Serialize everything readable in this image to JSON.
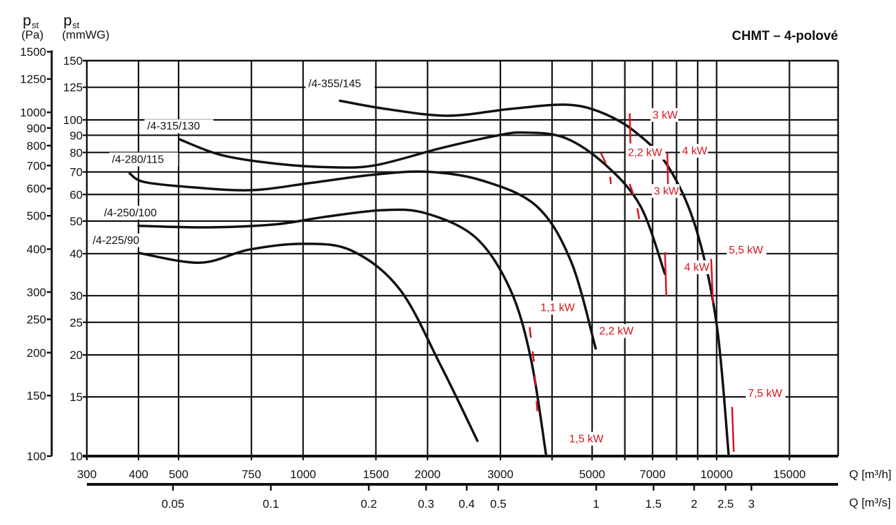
{
  "chart_data": {
    "type": "line",
    "title": "CHMT – 4-polové",
    "y_axis_pa": {
      "symbol": "p",
      "sub": "st",
      "unit": "(Pa)",
      "ticks": [
        1500,
        1250,
        1000,
        900,
        800,
        700,
        600,
        500,
        400,
        300,
        250,
        200,
        150,
        100
      ],
      "range": [
        100,
        1500
      ],
      "scale": "log"
    },
    "y_axis_mmwg": {
      "symbol": "p",
      "sub": "st",
      "unit": "(mmWG)",
      "ticks": [
        150,
        125,
        100,
        90,
        80,
        70,
        60,
        50,
        40,
        30,
        25,
        20,
        15,
        10
      ],
      "range": [
        10,
        150
      ],
      "scale": "log"
    },
    "x_axis_m3h": {
      "label": "Q [m³/h]",
      "ticks": [
        300,
        400,
        500,
        750,
        1000,
        1500,
        2000,
        3000,
        5000,
        7000,
        10000,
        15000
      ],
      "gridlines": [
        300,
        400,
        500,
        750,
        1000,
        1500,
        2000,
        3000,
        4000,
        5000,
        6000,
        7000,
        8000,
        9000,
        10000,
        15000
      ],
      "range": [
        300,
        19500
      ],
      "scale": "log"
    },
    "x_axis_m3s": {
      "label": "Q [m³/s]",
      "ticks": [
        "0.05",
        "0.1",
        "0.2",
        "0.3",
        "0.4",
        "0.5",
        "1",
        "1.5",
        "2",
        "2.5",
        "3"
      ],
      "scale": "log"
    },
    "grid": true,
    "series": [
      {
        "name": "/4-355/145",
        "label_at": [
          1030,
          125
        ],
        "points": [
          [
            1228,
            114
          ],
          [
            1585,
            107.8
          ],
          [
            2236,
            102.9
          ],
          [
            3170,
            107.8
          ],
          [
            4300,
            111
          ],
          [
            5200,
            105.8
          ],
          [
            6300,
            92.9
          ],
          [
            7600,
            73.3
          ],
          [
            8900,
            47.9
          ],
          [
            10000,
            24.7
          ],
          [
            10700,
            10
          ]
        ]
      },
      {
        "name": "/4-315/130",
        "label_at": [
          420,
          93.5
        ],
        "points": [
          [
            502,
            87.6
          ],
          [
            632,
            78.7
          ],
          [
            858,
            74.1
          ],
          [
            1170,
            72.3
          ],
          [
            1497,
            73.3
          ],
          [
            2152,
            82.4
          ],
          [
            2930,
            89.7
          ],
          [
            3420,
            91.7
          ],
          [
            4300,
            88.4
          ],
          [
            5400,
            73.3
          ],
          [
            6550,
            55.3
          ],
          [
            7500,
            34.8
          ]
        ]
      },
      {
        "name": "/4-280/115",
        "label_at": [
          345,
          74.5
        ],
        "points": [
          [
            381,
            69.2
          ],
          [
            414,
            65.3
          ],
          [
            542,
            63.0
          ],
          [
            750,
            61.8
          ],
          [
            1041,
            64.9
          ],
          [
            1465,
            68.6
          ],
          [
            1992,
            70.1
          ],
          [
            2713,
            66.0
          ],
          [
            3675,
            55.3
          ],
          [
            4451,
            37.8
          ],
          [
            5100,
            20.9
          ]
        ]
      },
      {
        "name": "/4-250/100",
        "label_at": [
          330,
          51.7
        ],
        "points": [
          [
            400,
            48.4
          ],
          [
            585,
            47.9
          ],
          [
            858,
            48.9
          ],
          [
            1121,
            51.4
          ],
          [
            1558,
            53.9
          ],
          [
            1987,
            52.7
          ],
          [
            2618,
            44.6
          ],
          [
            3170,
            31.3
          ],
          [
            3555,
            19.5
          ],
          [
            3868,
            10.1
          ]
        ]
      },
      {
        "name": "/4-225/90",
        "label_at": [
          310,
          42.8
        ],
        "points": [
          [
            400,
            40.2
          ],
          [
            563,
            37.6
          ],
          [
            739,
            41.1
          ],
          [
            1000,
            42.8
          ],
          [
            1313,
            40.8
          ],
          [
            1714,
            31.3
          ],
          [
            2152,
            18.6
          ],
          [
            2640,
            11.1
          ]
        ]
      }
    ],
    "power_marks": [
      {
        "label": "3 kW",
        "label_at": [
          7000,
          101
        ],
        "segments": [
          [
            [
              6164,
              104.6
            ],
            [
              6190,
              85.1
            ]
          ]
        ]
      },
      {
        "label": "2,2 kW",
        "label_at": [
          6100,
          78
        ],
        "segments": [
          [
            [
              5250,
              79.7
            ],
            [
              5400,
              74.1
            ]
          ],
          [
            [
              5530,
              67.7
            ],
            [
              5550,
              64.5
            ]
          ]
        ]
      },
      {
        "label": "4 kW",
        "label_at": [
          8250,
          79
        ],
        "segments": [
          [
            [
              7600,
              79.7
            ],
            [
              7630,
              63.5
            ]
          ]
        ]
      },
      {
        "label": "3 kW",
        "label_at": [
          7050,
          60
        ],
        "segments": [
          [
            [
              6160,
              64.5
            ],
            [
              6300,
              59.8
            ]
          ],
          [
            [
              6430,
              54.6
            ],
            [
              6500,
              50.7
            ]
          ]
        ]
      },
      {
        "label": "4 kW",
        "label_at": [
          8350,
          35.6
        ],
        "segments": [
          [
            [
              7500,
              40.4
            ],
            [
              7560,
              29.8
            ]
          ]
        ]
      },
      {
        "label": "5,5 kW",
        "label_at": [
          10700,
          40
        ],
        "segments": [
          [
            [
              9700,
              38.6
            ],
            [
              9800,
              28.5
            ]
          ]
        ]
      },
      {
        "label": "1,1 kW",
        "label_at": [
          3750,
          27
        ],
        "segments": [
          [
            [
              3530,
              24.2
            ],
            [
              3555,
              22.5
            ]
          ],
          [
            [
              3590,
              20.5
            ],
            [
              3615,
              19.1
            ]
          ],
          [
            [
              3630,
              17.4
            ],
            [
              3650,
              16.2
            ]
          ],
          [
            [
              3670,
              14.6
            ],
            [
              3685,
              13.6
            ]
          ]
        ]
      },
      {
        "label": "2,2 kW",
        "label_at": [
          5200,
          23
        ],
        "segments": []
      },
      {
        "label": "1,5 kW",
        "label_at": [
          4400,
          11
        ],
        "segments": []
      },
      {
        "label": "7,5 kW",
        "label_at": [
          11900,
          15
        ],
        "segments": [
          [
            [
              10900,
              14.0
            ],
            [
              11000,
              10.3
            ]
          ]
        ]
      }
    ],
    "colors": {
      "curve": "#111111",
      "power": "#d2161e",
      "grid": "#111111"
    }
  }
}
